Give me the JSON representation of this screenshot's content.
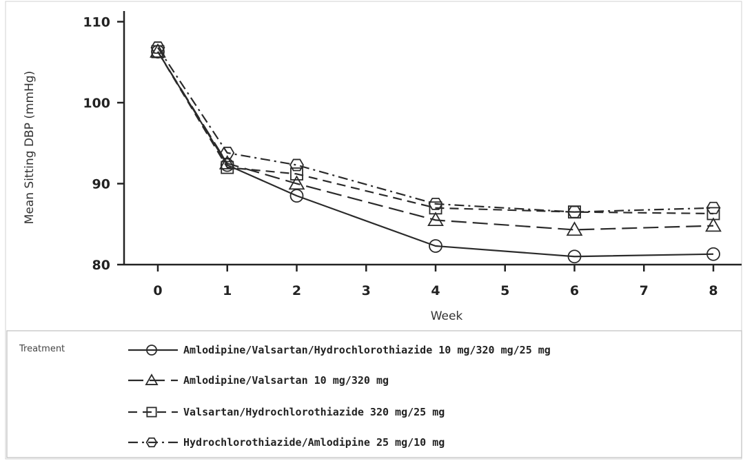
{
  "chart_data": {
    "type": "line",
    "title": "",
    "xlabel": "Week",
    "ylabel": "Mean Sitting DBP (mmHg)",
    "xlim": [
      0,
      8
    ],
    "ylim": [
      80,
      110
    ],
    "x_ticks": [
      0,
      1,
      2,
      3,
      4,
      5,
      6,
      7,
      8
    ],
    "y_ticks": [
      80,
      90,
      100,
      110
    ],
    "grid": false,
    "legend_title": "Treatment",
    "legend_position": "bottom",
    "x": [
      0,
      1,
      2,
      4,
      6,
      8
    ],
    "series": [
      {
        "name": "Amlodipine/Valsartan/Hydrochlorothiazide 10 mg/320 mg/25 mg",
        "marker": "circle",
        "dash": "solid",
        "values": [
          106.3,
          92.3,
          88.5,
          82.3,
          81.0,
          81.3
        ]
      },
      {
        "name": "Amlodipine/Valsartan 10 mg/320 mg",
        "marker": "triangle",
        "dash": "long-dash",
        "values": [
          106.3,
          92.5,
          90.0,
          85.5,
          84.3,
          84.8
        ]
      },
      {
        "name": "Valsartan/Hydrochlorothiazide 320 mg/25 mg",
        "marker": "square",
        "dash": "dash",
        "values": [
          106.3,
          92.0,
          91.2,
          87.0,
          86.5,
          86.3
        ]
      },
      {
        "name": "Hydrochlorothiazide/Amlodipine 25 mg/10 mg",
        "marker": "diamond",
        "dash": "dash-dot",
        "values": [
          106.8,
          93.8,
          92.3,
          87.5,
          86.5,
          87.0
        ]
      }
    ]
  },
  "colors": {
    "ink": "#2a2a2a",
    "axis": "#222222"
  }
}
